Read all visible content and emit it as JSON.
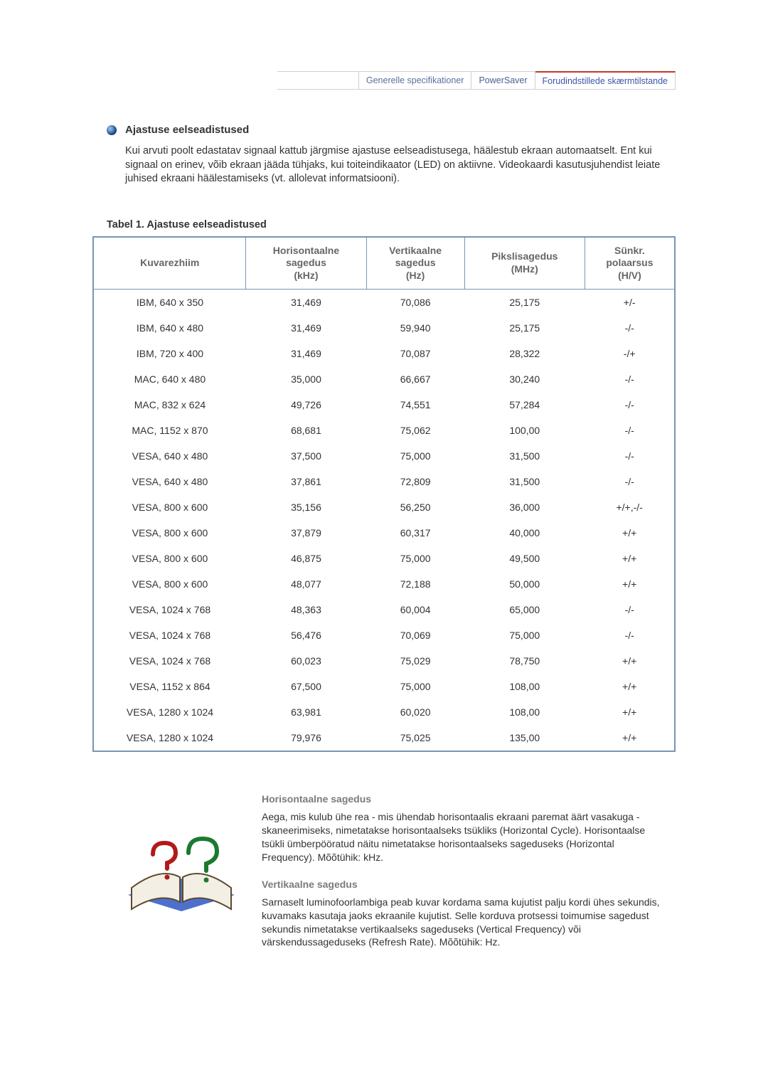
{
  "tabs": {
    "items": [
      {
        "label": "Generelle specifikationer",
        "active": false
      },
      {
        "label": "PowerSaver",
        "active": false
      },
      {
        "label": "Forudindstillede skærmtilstande",
        "active": true
      }
    ],
    "inactive_color": "#5b6fa0",
    "active_color": "#3a58a8",
    "active_border_color": "#c0392b"
  },
  "section": {
    "title": "Ajastuse eelseadistused",
    "intro": "Kui arvuti poolt edastatav signaal kattub järgmise ajastuse eelseadistusega, häälestub ekraan automaatselt. Ent kui signaal on erinev, võib ekraan jääda tühjaks, kui toiteindikaator (LED) on aktiivne. Videokaardi kasutusjuhendist leiate juhised ekraani häälestamiseks (vt. allolevat informatsiooni)."
  },
  "table": {
    "caption": "Tabel 1. Ajastuse eelseadistused",
    "border_color": "#7a95b8",
    "header_color": "#666666",
    "columns": [
      "Kuvarezhiim",
      "Horisontaalne sagedus (kHz)",
      "Vertikaalne sagedus (Hz)",
      "Pikslisagedus (MHz)",
      "Sünkr. polaarsus (H/V)"
    ],
    "rows": [
      [
        "IBM, 640 x 350",
        "31,469",
        "70,086",
        "25,175",
        "+/-"
      ],
      [
        "IBM, 640 x 480",
        "31,469",
        "59,940",
        "25,175",
        "-/-"
      ],
      [
        "IBM, 720 x 400",
        "31,469",
        "70,087",
        "28,322",
        "-/+"
      ],
      [
        "MAC, 640 x 480",
        "35,000",
        "66,667",
        "30,240",
        "-/-"
      ],
      [
        "MAC, 832 x 624",
        "49,726",
        "74,551",
        "57,284",
        "-/-"
      ],
      [
        "MAC, 1152 x 870",
        "68,681",
        "75,062",
        "100,00",
        "-/-"
      ],
      [
        "VESA, 640 x 480",
        "37,500",
        "75,000",
        "31,500",
        "-/-"
      ],
      [
        "VESA, 640 x 480",
        "37,861",
        "72,809",
        "31,500",
        "-/-"
      ],
      [
        "VESA, 800 x 600",
        "35,156",
        "56,250",
        "36,000",
        "+/+,-/-"
      ],
      [
        "VESA, 800 x 600",
        "37,879",
        "60,317",
        "40,000",
        "+/+"
      ],
      [
        "VESA, 800 x 600",
        "46,875",
        "75,000",
        "49,500",
        "+/+"
      ],
      [
        "VESA, 800 x 600",
        "48,077",
        "72,188",
        "50,000",
        "+/+"
      ],
      [
        "VESA, 1024 x 768",
        "48,363",
        "60,004",
        "65,000",
        "-/-"
      ],
      [
        "VESA, 1024 x 768",
        "56,476",
        "70,069",
        "75,000",
        "-/-"
      ],
      [
        "VESA, 1024 x 768",
        "60,023",
        "75,029",
        "78,750",
        "+/+"
      ],
      [
        "VESA, 1152 x 864",
        "67,500",
        "75,000",
        "108,00",
        "+/+"
      ],
      [
        "VESA, 1280 x 1024",
        "63,981",
        "60,020",
        "108,00",
        "+/+"
      ],
      [
        "VESA, 1280 x 1024",
        "79,976",
        "75,025",
        "135,00",
        "+/+"
      ]
    ]
  },
  "definitions": {
    "hfreq": {
      "title": "Horisontaalne sagedus",
      "body": "Aega, mis kulub ühe rea - mis ühendab horisontaalis ekraani paremat äärt vasakuga - skaneerimiseks, nimetatakse horisontaalseks tsükliks (Horizontal Cycle). Horisontaalse tsükli ümberpööratud näitu nimetatakse horisontaalseks sageduseks (Horizontal Frequency). Mõõtühik: kHz."
    },
    "vfreq": {
      "title": "Vertikaalne sagedus",
      "body": "Sarnaselt luminofoorlambiga peab kuvar kordama sama kujutist palju kordi ühes sekundis, kuvamaks kasutaja jaoks ekraanile kujutist. Selle korduva protsessi toimumise sagedust sekundis nimetatakse vertikaalseks sageduseks (Vertical Frequency) või värskendussageduseks (Refresh Rate). Mõõtühik: Hz."
    }
  },
  "colors": {
    "text": "#333333",
    "muted": "#7b7b7b",
    "background": "#ffffff"
  }
}
